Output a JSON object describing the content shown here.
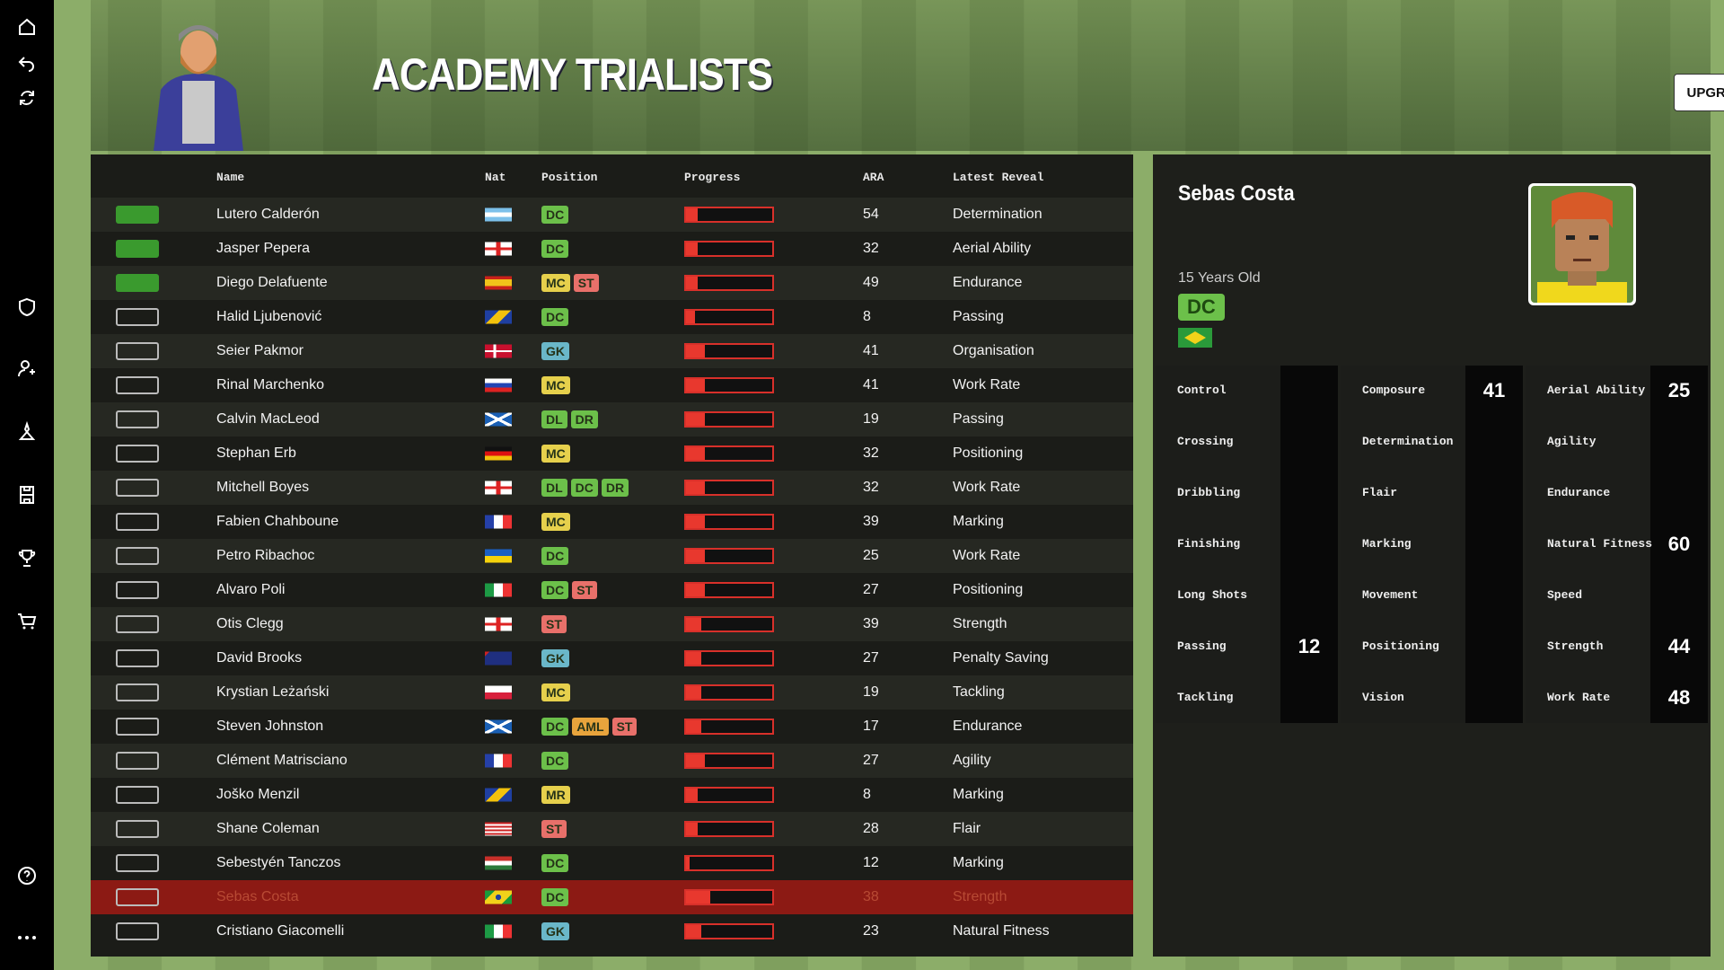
{
  "header": {
    "title": "ACADEMY TRIALISTS",
    "button": "UPGRADE"
  },
  "table": {
    "columns": [
      "Name",
      "Nat",
      "Position",
      "Progress",
      "ARA",
      "Latest Reveal"
    ],
    "selected_row": 20,
    "rows": [
      {
        "graduated": true,
        "name": "Lutero Calderón",
        "positions": [
          {
            "label": "DC",
            "color": "#6cc04a"
          }
        ],
        "progress": 14,
        "ara": 54,
        "reveal": "Determination"
      },
      {
        "graduated": true,
        "name": "Jasper Pepera",
        "positions": [
          {
            "label": "DC",
            "color": "#6cc04a"
          }
        ],
        "progress": 14,
        "ara": 32,
        "reveal": "Aerial Ability"
      },
      {
        "graduated": true,
        "name": "Diego Delafuente",
        "positions": [
          {
            "label": "MC",
            "color": "#e6d04c"
          },
          {
            "label": "ST",
            "color": "#e8706a"
          }
        ],
        "progress": 14,
        "ara": 49,
        "reveal": "Endurance"
      },
      {
        "graduated": false,
        "name": "Halid Ljubenović",
        "positions": [
          {
            "label": "DC",
            "color": "#6cc04a"
          }
        ],
        "progress": 10,
        "ara": 8,
        "reveal": "Passing"
      },
      {
        "graduated": false,
        "name": "Seier Pakmor",
        "positions": [
          {
            "label": "GK",
            "color": "#6ab7c9"
          }
        ],
        "progress": 22,
        "ara": 41,
        "reveal": "Organisation"
      },
      {
        "graduated": false,
        "name": "Rinal Marchenko",
        "positions": [
          {
            "label": "MC",
            "color": "#e6d04c"
          }
        ],
        "progress": 22,
        "ara": 41,
        "reveal": "Work Rate"
      },
      {
        "graduated": false,
        "name": "Calvin MacLeod",
        "positions": [
          {
            "label": "DL",
            "color": "#6cc04a"
          },
          {
            "label": "DR",
            "color": "#6cc04a"
          }
        ],
        "progress": 22,
        "ara": 19,
        "reveal": "Passing"
      },
      {
        "graduated": false,
        "name": "Stephan Erb",
        "positions": [
          {
            "label": "MC",
            "color": "#e6d04c"
          }
        ],
        "progress": 22,
        "ara": 32,
        "reveal": "Positioning"
      },
      {
        "graduated": false,
        "name": "Mitchell Boyes",
        "positions": [
          {
            "label": "DL",
            "color": "#6cc04a"
          },
          {
            "label": "DC",
            "color": "#6cc04a"
          },
          {
            "label": "DR",
            "color": "#6cc04a"
          }
        ],
        "progress": 22,
        "ara": 32,
        "reveal": "Work Rate"
      },
      {
        "graduated": false,
        "name": "Fabien Chahboune",
        "positions": [
          {
            "label": "MC",
            "color": "#e6d04c"
          }
        ],
        "progress": 22,
        "ara": 39,
        "reveal": "Marking"
      },
      {
        "graduated": false,
        "name": "Petro Ribachoc",
        "positions": [
          {
            "label": "DC",
            "color": "#6cc04a"
          }
        ],
        "progress": 22,
        "ara": 25,
        "reveal": "Work Rate"
      },
      {
        "graduated": false,
        "name": "Alvaro Poli",
        "positions": [
          {
            "label": "DC",
            "color": "#6cc04a"
          },
          {
            "label": "ST",
            "color": "#e8706a"
          }
        ],
        "progress": 22,
        "ara": 27,
        "reveal": "Positioning"
      },
      {
        "graduated": false,
        "name": "Otis Clegg",
        "positions": [
          {
            "label": "ST",
            "color": "#e8706a"
          }
        ],
        "progress": 18,
        "ara": 39,
        "reveal": "Strength"
      },
      {
        "graduated": false,
        "name": "David Brooks",
        "positions": [
          {
            "label": "GK",
            "color": "#6ab7c9"
          }
        ],
        "progress": 18,
        "ara": 27,
        "reveal": "Penalty Saving"
      },
      {
        "graduated": false,
        "name": "Krystian Leżański",
        "positions": [
          {
            "label": "MC",
            "color": "#e6d04c"
          }
        ],
        "progress": 18,
        "ara": 19,
        "reveal": "Tackling"
      },
      {
        "graduated": false,
        "name": "Steven Johnston",
        "positions": [
          {
            "label": "DC",
            "color": "#6cc04a"
          },
          {
            "label": "AML",
            "color": "#e8a43c"
          },
          {
            "label": "ST",
            "color": "#e8706a"
          }
        ],
        "progress": 18,
        "ara": 17,
        "reveal": "Endurance"
      },
      {
        "graduated": false,
        "name": "Clément Matrisciano",
        "positions": [
          {
            "label": "DC",
            "color": "#6cc04a"
          }
        ],
        "progress": 22,
        "ara": 27,
        "reveal": "Agility"
      },
      {
        "graduated": false,
        "name": "Joško Menzil",
        "positions": [
          {
            "label": "MR",
            "color": "#e6d04c"
          }
        ],
        "progress": 14,
        "ara": 8,
        "reveal": "Marking"
      },
      {
        "graduated": false,
        "name": "Shane Coleman",
        "positions": [
          {
            "label": "ST",
            "color": "#e8706a"
          }
        ],
        "progress": 14,
        "ara": 28,
        "reveal": "Flair"
      },
      {
        "graduated": false,
        "name": "Sebestyén Tanczos",
        "positions": [
          {
            "label": "DC",
            "color": "#6cc04a"
          }
        ],
        "progress": 4,
        "ara": 12,
        "reveal": "Marking"
      },
      {
        "graduated": false,
        "name": "Sebas Costa",
        "positions": [
          {
            "label": "DC",
            "color": "#6cc04a"
          }
        ],
        "progress": 28,
        "ara": 38,
        "reveal": "Strength"
      },
      {
        "graduated": false,
        "name": "Cristiano Giacomelli",
        "positions": [
          {
            "label": "GK",
            "color": "#6ab7c9"
          }
        ],
        "progress": 18,
        "ara": 23,
        "reveal": "Natural Fitness"
      }
    ]
  },
  "detail": {
    "name": "Sebas Costa",
    "age": "15 Years Old",
    "position": "DC",
    "attributes": [
      [
        {
          "label": "Control",
          "value": null
        },
        {
          "label": "Crossing",
          "value": null
        },
        {
          "label": "Dribbling",
          "value": null
        },
        {
          "label": "Finishing",
          "value": null
        },
        {
          "label": "Long Shots",
          "value": null
        },
        {
          "label": "Passing",
          "value": 12
        },
        {
          "label": "Tackling",
          "value": null
        }
      ],
      [
        {
          "label": "Composure",
          "value": 41
        },
        {
          "label": "Determination",
          "value": null
        },
        {
          "label": "Flair",
          "value": null
        },
        {
          "label": "Marking",
          "value": null
        },
        {
          "label": "Movement",
          "value": null
        },
        {
          "label": "Positioning",
          "value": null
        },
        {
          "label": "Vision",
          "value": null
        }
      ],
      [
        {
          "label": "Aerial Ability",
          "value": 25
        },
        {
          "label": "Agility",
          "value": null
        },
        {
          "label": "Endurance",
          "value": null
        },
        {
          "label": "Natural Fitness",
          "value": 60
        },
        {
          "label": "Speed",
          "value": null
        },
        {
          "label": "Strength",
          "value": 44
        },
        {
          "label": "Work Rate",
          "value": 48
        }
      ]
    ]
  }
}
